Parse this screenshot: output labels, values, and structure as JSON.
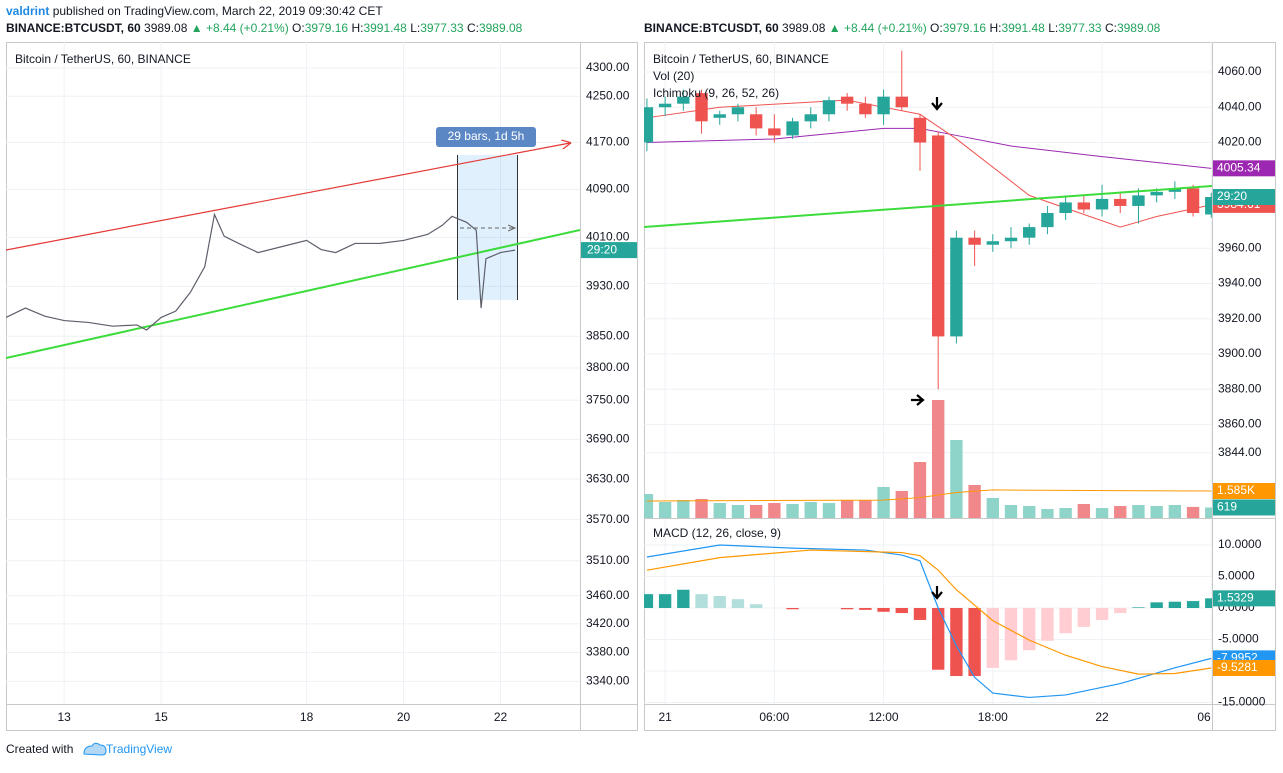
{
  "header": {
    "author": "valdrint",
    "published": "published on TradingView.com, March 22, 2019 09:30:42 CET"
  },
  "quote": {
    "symbol": "BINANCE:BTCUSDT, 60",
    "last": 3989.08,
    "change": "▲ +8.44 (+0.21%)",
    "labels": [
      "O:",
      "H:",
      "L:",
      "C:"
    ],
    "open": 3979.16,
    "high": 3991.48,
    "low": 3977.33,
    "close": 3989.08
  },
  "footer": {
    "created": "Created with",
    "brand": "TradingView"
  },
  "chart_data": [
    {
      "type": "line",
      "title": "Bitcoin / TetherUS, 60, BINANCE",
      "color": "#5d606b",
      "log_scale": true,
      "grid": true,
      "x": [
        11.8,
        12.2,
        12.6,
        13,
        13.5,
        14,
        14.5,
        14.7,
        15,
        15.3,
        15.6,
        15.9,
        16.1,
        16.3,
        16.6,
        17,
        17.5,
        18,
        18.3,
        18.6,
        19,
        19.5,
        20,
        20.5,
        20.8,
        21,
        21.3,
        21.5,
        21.6,
        21.7,
        22,
        22.3
      ],
      "values": [
        3880,
        3895,
        3882,
        3875,
        3872,
        3866,
        3868,
        3860,
        3880,
        3890,
        3920,
        3962,
        4048,
        4012,
        4000,
        3985,
        3995,
        4005,
        3990,
        3985,
        4000,
        4000,
        4005,
        4015,
        4030,
        4045,
        4035,
        4022,
        3895,
        3975,
        3985,
        3989.08
      ],
      "xlim": [
        11.8,
        23.64
      ],
      "xticks": [
        13,
        15,
        18,
        20,
        22
      ],
      "ylim": [
        3309,
        4346
      ],
      "yticks": [
        {
          "value": 4300,
          "label": "4300.00"
        },
        {
          "value": 4250,
          "label": "4250.00"
        },
        {
          "value": 4170,
          "label": "4170.00"
        },
        {
          "value": 4090,
          "label": "4090.00"
        },
        {
          "value": 4010,
          "label": "4010.00"
        },
        {
          "value": 3930,
          "label": "3930.00"
        },
        {
          "value": 3850,
          "label": "3850.00"
        },
        {
          "value": 3800,
          "label": "3800.00"
        },
        {
          "value": 3750,
          "label": "3750.00"
        },
        {
          "value": 3690,
          "label": "3690.00"
        },
        {
          "value": 3630,
          "label": "3630.00"
        },
        {
          "value": 3570,
          "label": "3570.00"
        },
        {
          "value": 3510,
          "label": "3510.00"
        },
        {
          "value": 3460,
          "label": "3460.00"
        },
        {
          "value": 3420,
          "label": "3420.00"
        },
        {
          "value": 3380,
          "label": "3380.00"
        },
        {
          "value": 3340,
          "label": "3340.00"
        }
      ],
      "range_label": "29 bars, 1d 5h",
      "countdown": "29:20",
      "countdown_color": "#26a69a"
    },
    {
      "type": "candlestick",
      "title": "Bitcoin / TetherUS, 60, BINANCE",
      "indicators": [
        "Vol (20)",
        "Ichimoku (9, 26, 52, 26)"
      ],
      "grid": true,
      "up_color": "#26a69a",
      "down_color": "#ef5350",
      "x": [
        -1,
        0,
        1,
        2,
        3,
        4,
        5,
        6,
        7,
        8,
        9,
        10,
        11,
        12,
        13,
        14,
        15,
        16,
        17,
        18,
        19,
        20,
        21,
        22,
        23,
        24,
        25,
        26,
        27,
        28,
        29,
        30
      ],
      "open": [
        4020,
        4040,
        4042,
        4048,
        4034,
        4036,
        4036,
        4028,
        4024,
        4032,
        4036,
        4046,
        4042,
        4036,
        4046,
        4034,
        4024,
        3910,
        3966,
        3962,
        3964,
        3966,
        3972,
        3980,
        3986,
        3982,
        3988,
        3984,
        3990,
        3992,
        3994,
        3979.16
      ],
      "high": [
        4045,
        4046,
        4050,
        4050,
        4038,
        4042,
        4040,
        4036,
        4034,
        4040,
        4046,
        4048,
        4046,
        4050,
        4072,
        4036,
        4026,
        3970,
        3970,
        3968,
        3972,
        3974,
        3984,
        3990,
        3990,
        3996,
        3992,
        3994,
        3994,
        3998,
        3996,
        3991.48
      ],
      "low": [
        4015,
        4035,
        4038,
        4025,
        4030,
        4032,
        4024,
        4020,
        4022,
        4028,
        4032,
        4038,
        4034,
        4030,
        4038,
        4004,
        3880,
        3906,
        3950,
        3958,
        3960,
        3962,
        3968,
        3976,
        3980,
        3978,
        3980,
        3974,
        3986,
        3988,
        3978,
        3977.33
      ],
      "close": [
        4040,
        4042,
        4046,
        4032,
        4036,
        4040,
        4028,
        4024,
        4032,
        4036,
        4044,
        4042,
        4036,
        4046,
        4040,
        4020,
        3910,
        3966,
        3962,
        3964,
        3966,
        3972,
        3980,
        3986,
        3982,
        3988,
        3984,
        3990,
        3992,
        3994,
        3980,
        3989.08
      ],
      "xlim": [
        -1.16,
        30.04
      ],
      "xticks": [
        {
          "value": 0,
          "label": "21"
        },
        {
          "value": 6,
          "label": "06:00"
        },
        {
          "value": 12,
          "label": "12:00"
        },
        {
          "value": 18,
          "label": "18:00"
        },
        {
          "value": 24,
          "label": "22"
        },
        {
          "value": 30,
          "label": "06"
        }
      ],
      "ylim": [
        3807,
        4077
      ],
      "yticks": [
        {
          "value": 4060,
          "label": "4060.00"
        },
        {
          "value": 4040,
          "label": "4040.00"
        },
        {
          "value": 4020,
          "label": "4020.00"
        },
        {
          "value": 3960,
          "label": "3960.00"
        },
        {
          "value": 3940,
          "label": "3940.00"
        },
        {
          "value": 3920,
          "label": "3920.00"
        },
        {
          "value": 3900,
          "label": "3900.00"
        },
        {
          "value": 3880,
          "label": "3880.00"
        },
        {
          "value": 3860,
          "label": "3860.00"
        },
        {
          "value": 3844,
          "label": "3844.00"
        }
      ],
      "lines": [
        {
          "color": "#9c27b0",
          "x": [
            -1,
            6,
            12,
            14,
            16,
            19,
            24,
            30
          ],
          "values": [
            4020,
            4022,
            4028,
            4028,
            4024,
            4018,
            4012,
            4005.34
          ]
        },
        {
          "color": "#ef5350",
          "x": [
            -1,
            3,
            10,
            14,
            16,
            20,
            25,
            27,
            30
          ],
          "values": [
            4034,
            4040,
            4044,
            4036,
            4022,
            3990,
            3972,
            3978,
            3984.61
          ]
        }
      ],
      "countdown": "29:20",
      "volume": {
        "values": [
          1410,
          940,
          1057,
          1116,
          880,
          763,
          763,
          880,
          822,
          940,
          880,
          1057,
          1057,
          1820,
          1585,
          3288,
          6929,
          4580,
          1938,
          1174,
          763,
          705,
          528,
          587,
          822,
          587,
          705,
          763,
          705,
          763,
          650,
          619
        ],
        "ylim": [
          0,
          27950
        ],
        "up_color": "#8fd4c8",
        "down_color": "#f0878a",
        "ma_x": [
          -1,
          12,
          14,
          16,
          18,
          22,
          26,
          30
        ],
        "ma": [
          1000,
          1050,
          1200,
          1500,
          1650,
          1620,
          1600,
          1585
        ],
        "ma_color": "#ff9800",
        "ma_label": "1.585K"
      },
      "macd": {
        "title": "MACD (12, 26, close, 9)",
        "ylim": [
          -15.24,
          13.97
        ],
        "yticks": [
          {
            "value": 10,
            "label": "10.0000"
          },
          {
            "value": 5,
            "label": "5.0000"
          },
          {
            "value": 0,
            "label": "0.0000"
          },
          {
            "value": -5,
            "label": "-5.0000"
          },
          {
            "value": -10,
            "label": "-10.0000"
          },
          {
            "value": -15,
            "label": "-15.0000"
          }
        ],
        "histogram": [
          2.2,
          2.2,
          2.9,
          2.2,
          1.9,
          1.4,
          0.6,
          0,
          -0.2,
          0,
          0,
          -0.2,
          -0.3,
          -0.6,
          -0.8,
          -1.9,
          -9.8,
          -10.8,
          -10.8,
          -9.5,
          -8.3,
          -6.7,
          -5.2,
          -4.0,
          -3.0,
          -1.9,
          -0.8,
          0.1,
          0.9,
          1.0,
          1.1,
          1.5329
        ],
        "hist_colors": [
          "#26a69a",
          "#b2dfdb",
          "#ef5350",
          "#ffcdd2"
        ],
        "macd": {
          "color": "#2196f3",
          "x": [
            -1,
            3,
            7,
            11,
            13,
            14,
            15,
            16,
            17,
            18,
            20,
            22,
            25,
            28,
            30
          ],
          "values": [
            8.1,
            10,
            9.5,
            9.2,
            8.4,
            7.5,
            0,
            -6,
            -11,
            -13.5,
            -14.2,
            -13.8,
            -12,
            -9.5,
            -7.9952
          ]
        },
        "signal": {
          "color": "#ff9800",
          "x": [
            -1,
            3,
            8,
            13,
            14,
            15,
            16,
            18,
            20,
            22,
            24,
            26,
            28,
            30
          ],
          "values": [
            6,
            8,
            9.2,
            8.8,
            8.3,
            6,
            2.9,
            -2,
            -5.1,
            -7.5,
            -9.3,
            -10.5,
            -10.4,
            -9.5281
          ]
        }
      }
    }
  ]
}
